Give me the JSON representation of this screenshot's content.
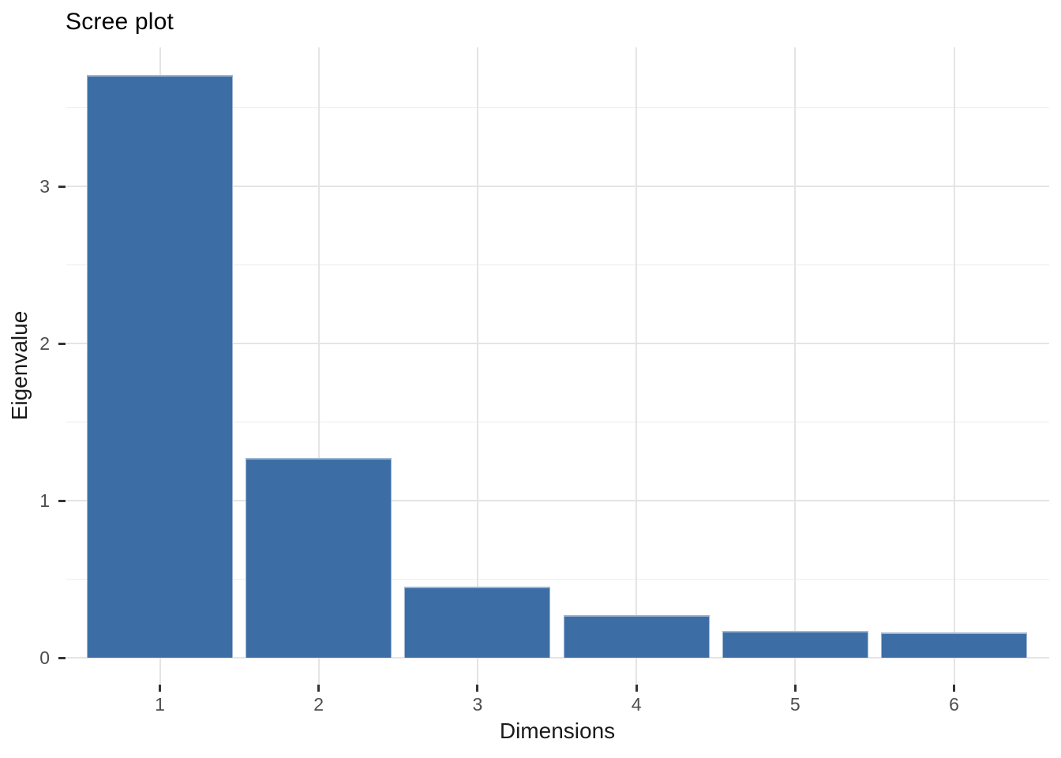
{
  "chart_data": {
    "type": "bar",
    "title": "Scree plot",
    "xlabel": "Dimensions",
    "ylabel": "Eigenvalue",
    "categories": [
      "1",
      "2",
      "3",
      "4",
      "5",
      "6"
    ],
    "values": [
      3.71,
      1.27,
      0.45,
      0.27,
      0.17,
      0.16
    ],
    "x_ticks": [
      "1",
      "2",
      "3",
      "4",
      "5",
      "6"
    ],
    "y_ticks": [
      "0",
      "1",
      "2",
      "3"
    ],
    "y_tick_values": [
      0,
      1,
      2,
      3
    ],
    "y_minor_tick_values": [
      0.5,
      1.5,
      2.5,
      3.5
    ],
    "ylim": [
      0,
      3.89
    ],
    "grid": true,
    "legend": false,
    "colors": {
      "bar_fill": "#3C6EA5",
      "bar_edge": "#9DB6D2",
      "grid_major": "#E4E4E4",
      "grid_minor": "#EDEDED",
      "tick_mark": "#333333",
      "tick_label": "#4D4D4D",
      "axis_title": "#1A1A1A",
      "background": "#FFFFFF"
    }
  }
}
